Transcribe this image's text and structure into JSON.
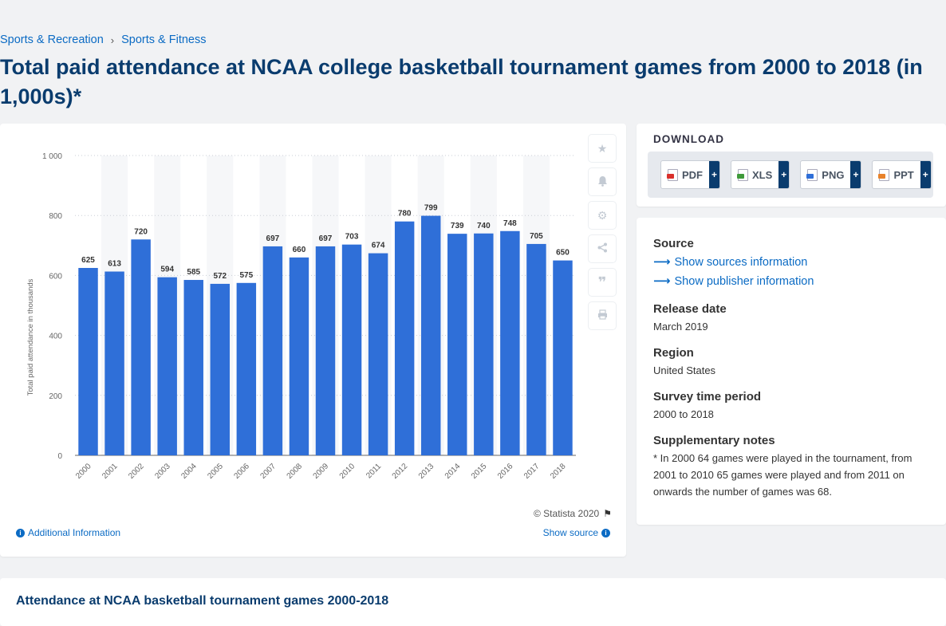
{
  "breadcrumb": {
    "item1": "Sports & Recreation",
    "separator": "›",
    "item2": "Sports & Fitness"
  },
  "title": "Total paid attendance at NCAA college basketball tournament games from 2000 to 2018 (in 1,000s)*",
  "chart_data": {
    "type": "bar",
    "title": "",
    "xlabel": "",
    "ylabel": "Total paid attendance in thousands",
    "ylim": [
      0,
      1000
    ],
    "yticks": [
      0,
      200,
      400,
      600,
      800,
      1000
    ],
    "ytick_labels": [
      "0",
      "200",
      "400",
      "600",
      "800",
      "1 000"
    ],
    "grid": "horizontal dotted",
    "categories": [
      "2000",
      "2001",
      "2002",
      "2003",
      "2004",
      "2005",
      "2006",
      "2007",
      "2008",
      "2009",
      "2010",
      "2011",
      "2012",
      "2013",
      "2014",
      "2015",
      "2016",
      "2017",
      "2018"
    ],
    "series": [
      {
        "values": [
          625,
          613,
          720,
          594,
          585,
          572,
          575,
          697,
          660,
          697,
          703,
          674,
          780,
          799,
          739,
          740,
          748,
          705,
          650
        ]
      }
    ],
    "bar_color": "#2f6fd8"
  },
  "toolbar": {
    "icons": [
      "star-icon",
      "bell-icon",
      "gear-icon",
      "share-icon",
      "quote-icon",
      "print-icon"
    ]
  },
  "chart_footer": {
    "copyright": "© Statista 2020",
    "additional_info": "Additional Information",
    "show_source": "Show source"
  },
  "download": {
    "title": "DOWNLOAD",
    "buttons": [
      {
        "label": "PDF",
        "plus": "+",
        "color": "#d9302b"
      },
      {
        "label": "XLS",
        "plus": "+",
        "color": "#3f9a3a"
      },
      {
        "label": "PNG",
        "plus": "+",
        "color": "#2f6fd8"
      },
      {
        "label": "PPT",
        "plus": "+",
        "color": "#e8822a"
      }
    ]
  },
  "info": {
    "source_label": "Source",
    "show_sources": "Show sources information",
    "show_publisher": "Show publisher information",
    "release_label": "Release date",
    "release_value": "March 2019",
    "region_label": "Region",
    "region_value": "United States",
    "survey_label": "Survey time period",
    "survey_value": "2000 to 2018",
    "notes_label": "Supplementary notes",
    "notes_value": "* In 2000 64 games were played in the tournament, from 2001 to 2010 65 games were played and from 2011 on onwards the number of games was 68."
  },
  "bottom": {
    "title": "Attendance at NCAA basketball tournament games 2000-2018"
  }
}
